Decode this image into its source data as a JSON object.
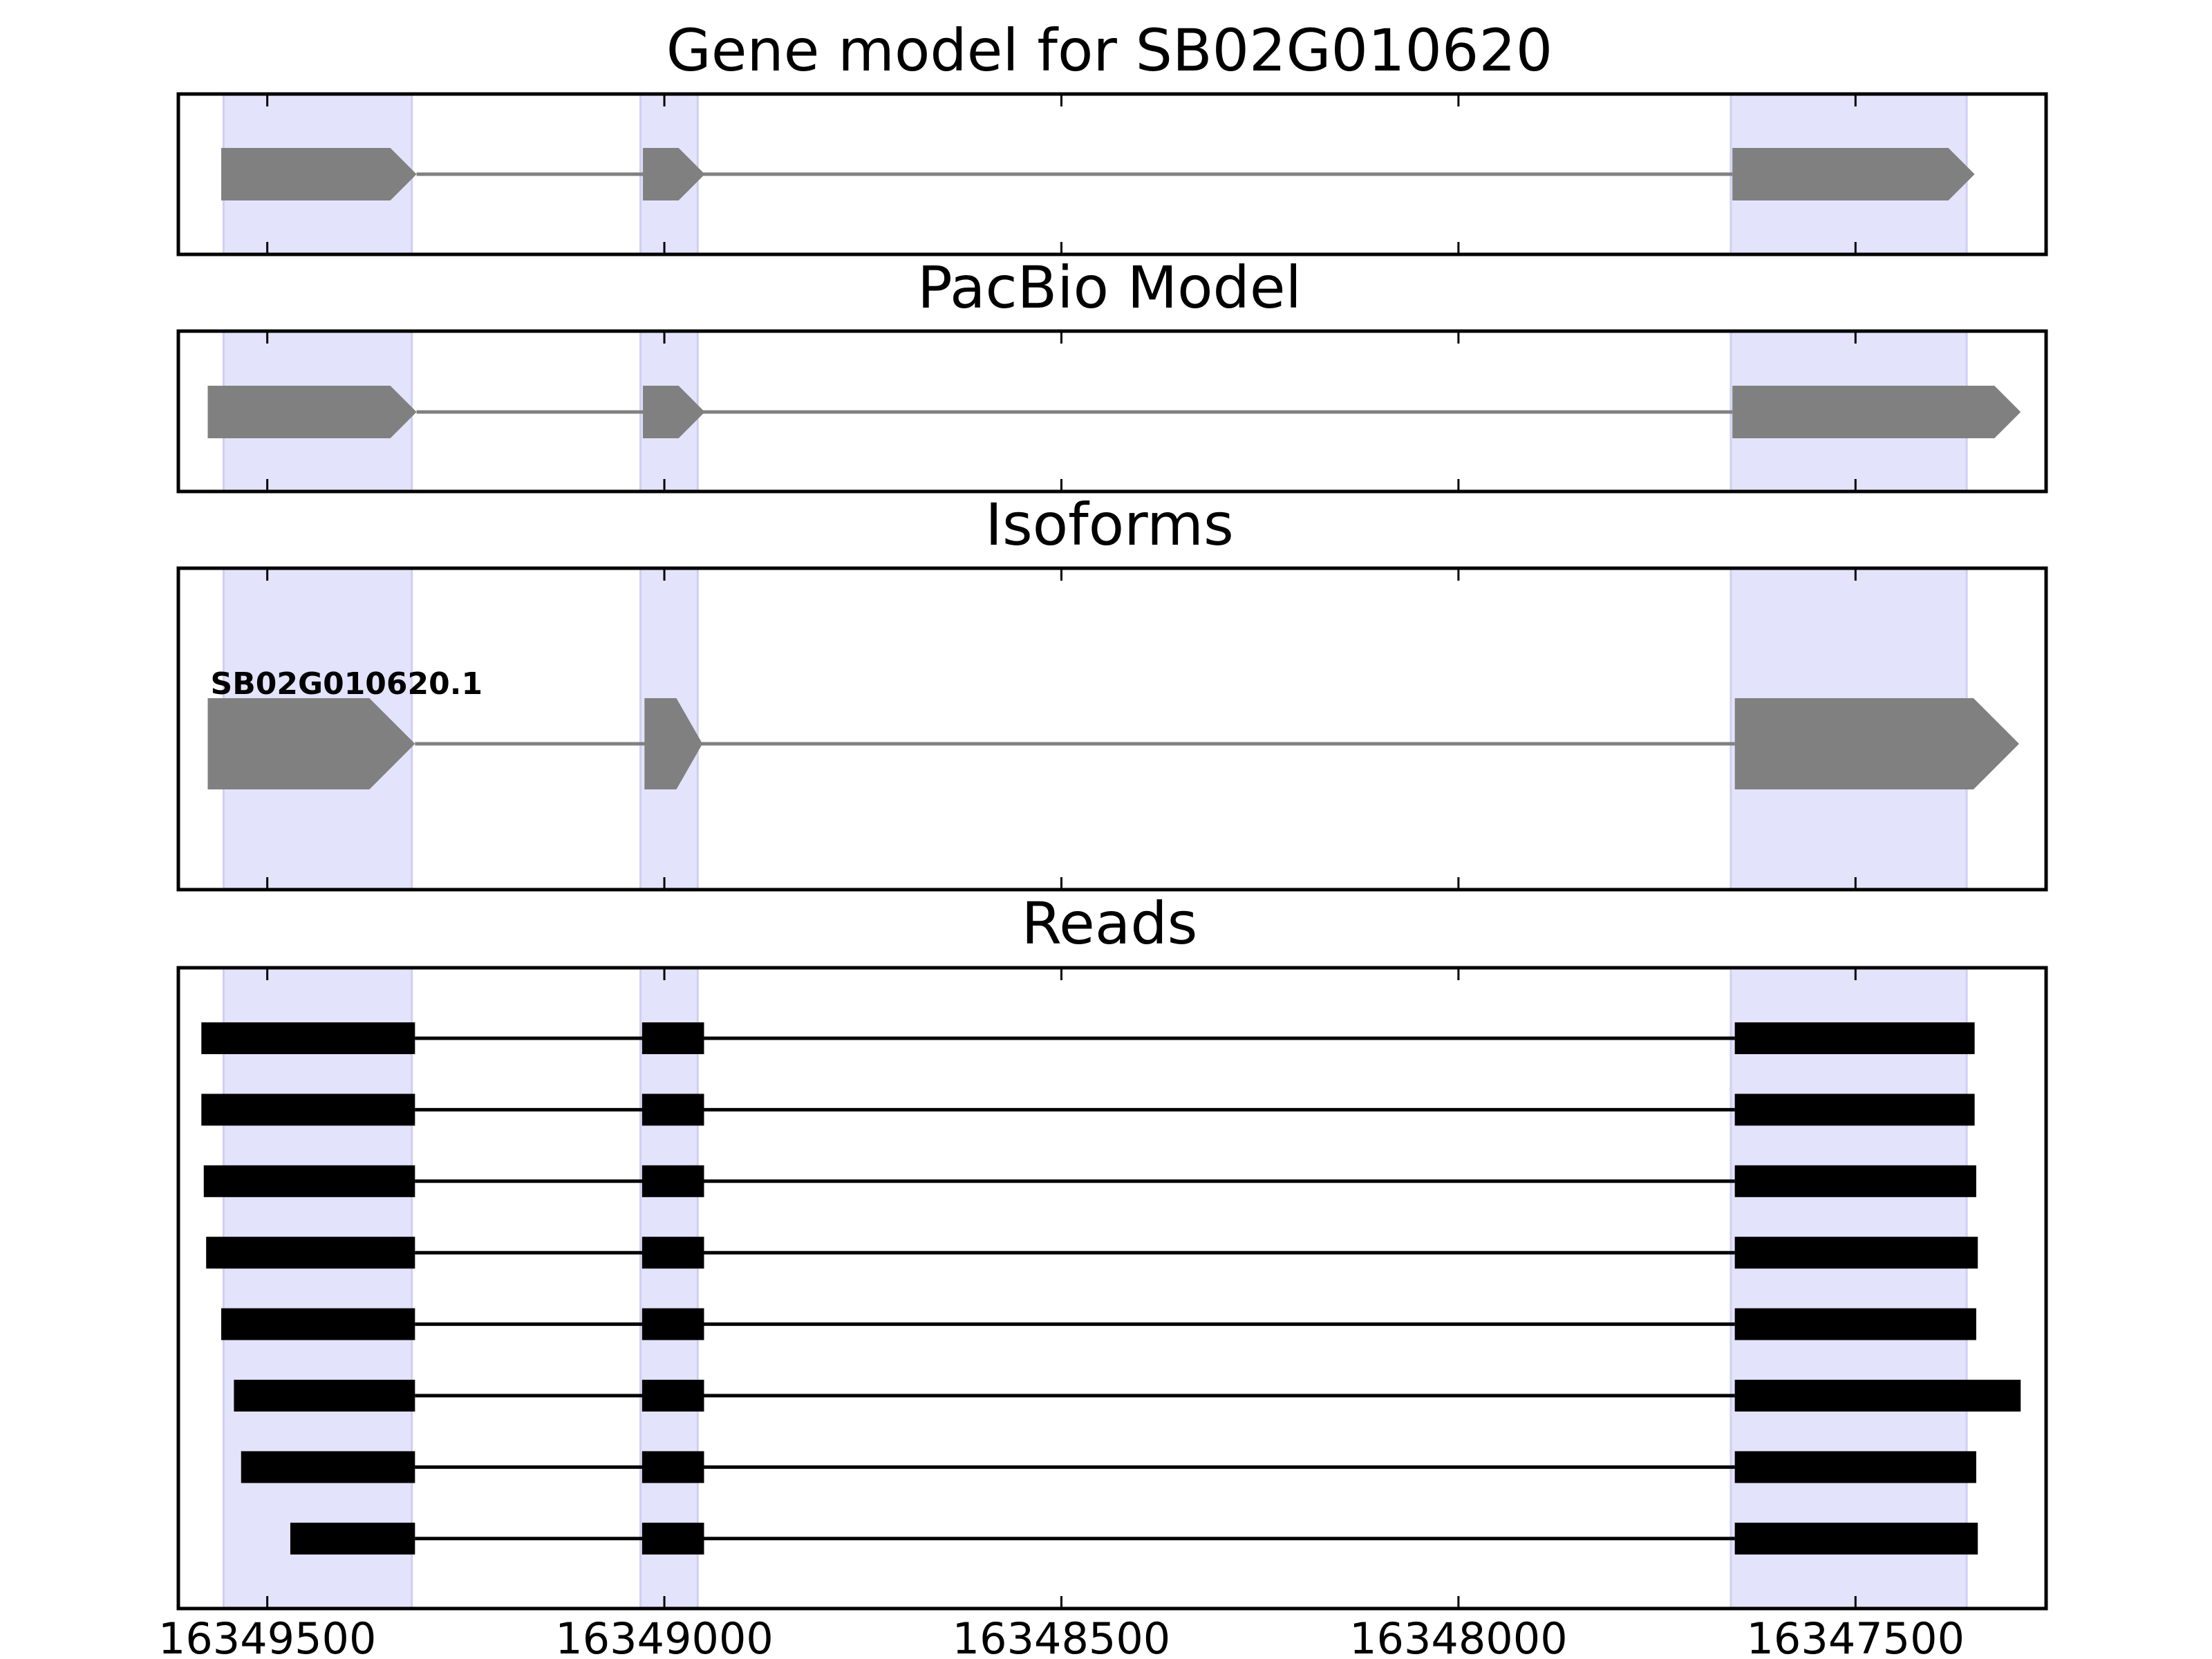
{
  "figure": {
    "panels": [
      {
        "id": "gene",
        "title": "Gene model for SB02G010620"
      },
      {
        "id": "pacbio",
        "title": "PacBio Model"
      },
      {
        "id": "isoforms",
        "title": "Isoforms"
      },
      {
        "id": "reads",
        "title": "Reads"
      }
    ]
  },
  "chart_data": {
    "type": "gene-structure",
    "x_axis": {
      "range": [
        16349612,
        16347260
      ],
      "reversed": true,
      "ticks": [
        16349500,
        16349000,
        16348500,
        16348000,
        16347500
      ],
      "tick_labels": [
        "16349500",
        "16349000",
        "16348500",
        "16348000",
        "16347500"
      ]
    },
    "highlight_regions": [
      [
        16349555,
        16349318
      ],
      [
        16349030,
        16348958
      ],
      [
        16347657,
        16347360
      ]
    ],
    "gene_model": {
      "strand": "-",
      "exons": [
        [
          16349558,
          16349312
        ],
        [
          16349027,
          16348949
        ],
        [
          16347655,
          16347350
        ]
      ]
    },
    "pacbio_model": {
      "strand": "-",
      "exons": [
        [
          16349575,
          16349312
        ],
        [
          16349027,
          16348949
        ],
        [
          16347655,
          16347292
        ]
      ]
    },
    "isoforms": [
      {
        "name": "SB02G010620.1",
        "strand": "-",
        "exons": [
          [
            16349575,
            16349314
          ],
          [
            16349025,
            16348952
          ],
          [
            16347652,
            16347294
          ]
        ]
      }
    ],
    "reads": [
      [
        [
          16349583,
          16349314
        ],
        [
          16349028,
          16348950
        ],
        [
          16347652,
          16347350
        ]
      ],
      [
        [
          16349583,
          16349314
        ],
        [
          16349028,
          16348950
        ],
        [
          16347652,
          16347350
        ]
      ],
      [
        [
          16349580,
          16349314
        ],
        [
          16349028,
          16348950
        ],
        [
          16347652,
          16347348
        ]
      ],
      [
        [
          16349577,
          16349314
        ],
        [
          16349028,
          16348950
        ],
        [
          16347652,
          16347346
        ]
      ],
      [
        [
          16349558,
          16349314
        ],
        [
          16349028,
          16348950
        ],
        [
          16347652,
          16347348
        ]
      ],
      [
        [
          16349542,
          16349314
        ],
        [
          16349028,
          16348950
        ],
        [
          16347652,
          16347292
        ]
      ],
      [
        [
          16349533,
          16349314
        ],
        [
          16349028,
          16348950
        ],
        [
          16347652,
          16347348
        ]
      ],
      [
        [
          16349471,
          16349314
        ],
        [
          16349028,
          16348950
        ],
        [
          16347652,
          16347346
        ]
      ]
    ],
    "colors": {
      "highlight": "#e3e3fb",
      "highlight_edge": "#cfcff2",
      "model": "#808080",
      "read": "#000000",
      "frame": "#000000"
    }
  }
}
